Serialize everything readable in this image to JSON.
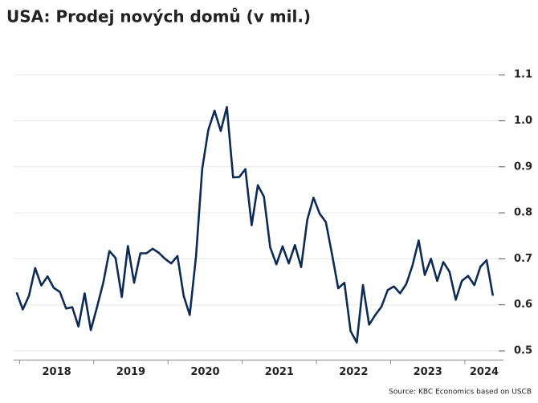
{
  "chart_data": {
    "type": "line",
    "title": "USA: Prodej nových domů (v mil.)",
    "source": "Source: KBC Economics based on USCB",
    "x": [
      2017.96,
      2018.043,
      2018.127,
      2018.21,
      2018.293,
      2018.377,
      2018.46,
      2018.543,
      2018.627,
      2018.71,
      2018.793,
      2018.877,
      2018.96,
      2019.043,
      2019.127,
      2019.21,
      2019.293,
      2019.377,
      2019.46,
      2019.543,
      2019.627,
      2019.71,
      2019.793,
      2019.877,
      2019.96,
      2020.043,
      2020.127,
      2020.21,
      2020.293,
      2020.377,
      2020.46,
      2020.543,
      2020.627,
      2020.71,
      2020.793,
      2020.877,
      2020.96,
      2021.043,
      2021.127,
      2021.21,
      2021.293,
      2021.377,
      2021.46,
      2021.543,
      2021.627,
      2021.71,
      2021.793,
      2021.877,
      2021.96,
      2022.043,
      2022.127,
      2022.21,
      2022.293,
      2022.377,
      2022.46,
      2022.543,
      2022.627,
      2022.71,
      2022.793,
      2022.877,
      2022.96,
      2023.043,
      2023.127,
      2023.21,
      2023.293,
      2023.377,
      2023.46,
      2023.543,
      2023.627,
      2023.71,
      2023.793,
      2023.877,
      2023.96,
      2024.043,
      2024.127,
      2024.21,
      2024.293,
      2024.377
    ],
    "series": [
      {
        "color": "#0d2b55",
        "values": [
          0.627,
          0.59,
          0.62,
          0.68,
          0.642,
          0.662,
          0.637,
          0.628,
          0.592,
          0.595,
          0.553,
          0.625,
          0.545,
          0.595,
          0.648,
          0.717,
          0.702,
          0.617,
          0.728,
          0.648,
          0.712,
          0.712,
          0.722,
          0.713,
          0.7,
          0.69,
          0.706,
          0.62,
          0.578,
          0.705,
          0.895,
          0.98,
          1.022,
          0.978,
          1.03,
          0.877,
          0.878,
          0.895,
          0.773,
          0.86,
          0.835,
          0.725,
          0.688,
          0.727,
          0.69,
          0.73,
          0.682,
          0.785,
          0.833,
          0.798,
          0.78,
          0.71,
          0.636,
          0.648,
          0.543,
          0.518,
          0.643,
          0.557,
          0.578,
          0.596,
          0.632,
          0.64,
          0.625,
          0.645,
          0.685,
          0.74,
          0.665,
          0.7,
          0.652,
          0.693,
          0.672,
          0.611,
          0.652,
          0.663,
          0.643,
          0.683,
          0.697,
          0.62
        ]
      }
    ],
    "xlim": [
      2017.92,
      2024.52
    ],
    "xticks": [
      2018,
      2019,
      2020,
      2021,
      2022,
      2023,
      2024
    ],
    "ylim": [
      0.48,
      1.12
    ],
    "yticks": [
      0.5,
      0.6,
      0.7,
      0.8,
      0.9,
      {
        "value": 1,
        "label": "1.0"
      },
      1.1
    ],
    "grid": true
  }
}
